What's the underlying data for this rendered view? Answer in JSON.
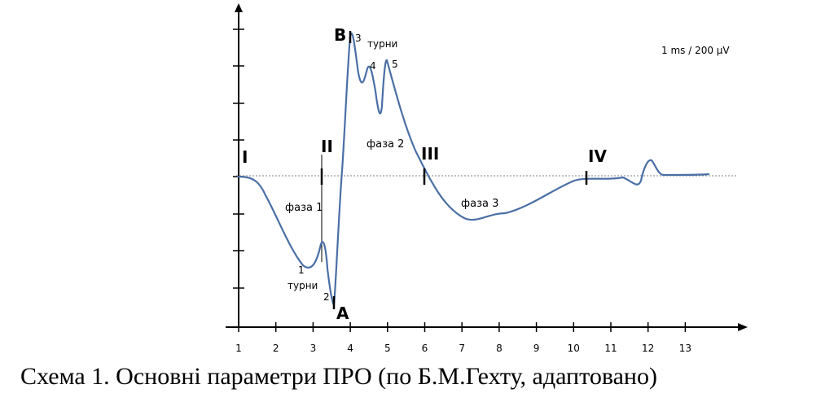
{
  "diagram": {
    "scale_label": "1 ms / 200 µV",
    "x_ticks": [
      "1",
      "2",
      "3",
      "4",
      "5",
      "6",
      "7",
      "8",
      "9",
      "10",
      "11",
      "12",
      "13"
    ],
    "roman_labels": {
      "i": "I",
      "ii": "II",
      "iii": "III",
      "iv": "IV"
    },
    "points": {
      "b": "B",
      "a": "A"
    },
    "turn_numbers": {
      "t1": "1",
      "t2": "2",
      "t3": "3",
      "t4": "4",
      "t5": "5"
    },
    "turns_word": "турни",
    "phases": {
      "phase1": "фаза 1",
      "phase2": "фаза 2",
      "phase3": "фаза 3"
    },
    "colors": {
      "waveform": "#4a6fa5",
      "axis": "#000000",
      "baseline": "#808080"
    }
  },
  "caption": "Схема 1. Основні параметри ПРО (по Б.М.Гехту, адаптовано)"
}
